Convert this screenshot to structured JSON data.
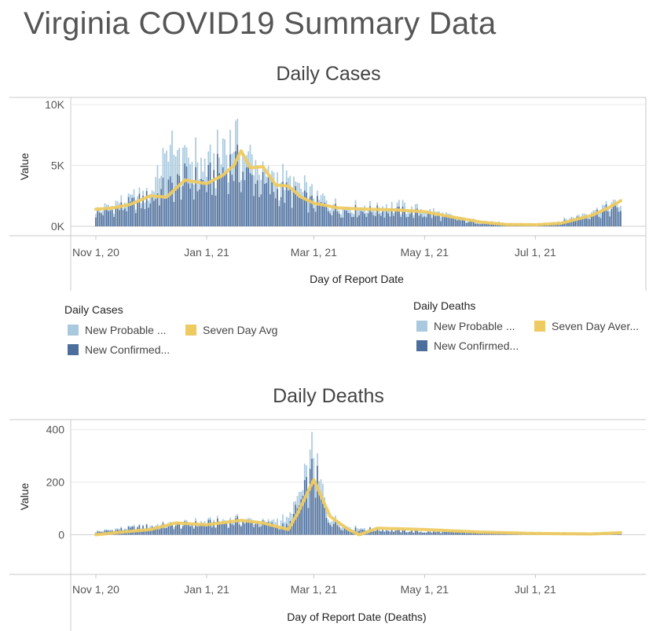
{
  "page": {
    "title": "Virginia COVID19 Summary Data"
  },
  "colors": {
    "probable": "#a9c9de",
    "confirmed": "#4c6e9c",
    "avg": "#eecb61",
    "grid": "#e8e8e8",
    "axis": "#c8c8c8"
  },
  "legend_cases": {
    "title": "Daily Cases",
    "items": [
      {
        "label": "New Probable ...",
        "color": "#a9c9de"
      },
      {
        "label": "Seven Day Avg",
        "color": "#eecb61"
      },
      {
        "label": "New Confirmed...",
        "color": "#4c6e9c"
      }
    ]
  },
  "legend_deaths": {
    "title": "Daily Deaths",
    "items": [
      {
        "label": "New Probable ...",
        "color": "#a9c9de"
      },
      {
        "label": "Seven Day Aver...",
        "color": "#eecb61"
      },
      {
        "label": "New Confirmed...",
        "color": "#4c6e9c"
      }
    ]
  },
  "chart_data": [
    {
      "type": "bar",
      "title": "Daily Cases",
      "xlabel": "Day of Report Date",
      "ylabel": "Value",
      "ylim": [
        0,
        10000
      ],
      "x_start": "2020-11-01",
      "x_end": "2021-08-17",
      "y_ticks": [
        {
          "v": 10000,
          "label": "10K"
        },
        {
          "v": 5000,
          "label": "5K"
        },
        {
          "v": 0,
          "label": "0K"
        }
      ],
      "x_ticks": [
        {
          "date": "2020-11-01",
          "label": "Nov 1, 20"
        },
        {
          "date": "2021-01-01",
          "label": "Jan 1, 21"
        },
        {
          "date": "2021-03-01",
          "label": "Mar 1, 21"
        },
        {
          "date": "2021-05-01",
          "label": "May 1, 21"
        },
        {
          "date": "2021-07-01",
          "label": "Jul 1, 21"
        }
      ],
      "series": [
        {
          "name": "New Probable ...",
          "points": [
            [
              "2020-11-01",
              300
            ],
            [
              "2020-11-15",
              400
            ],
            [
              "2020-12-01",
              500
            ],
            [
              "2020-12-10",
              3000
            ],
            [
              "2020-12-20",
              2000
            ],
            [
              "2021-01-01",
              1200
            ],
            [
              "2021-01-15",
              2000
            ],
            [
              "2021-02-01",
              1200
            ],
            [
              "2021-02-15",
              900
            ],
            [
              "2021-03-01",
              700
            ],
            [
              "2021-03-15",
              500
            ],
            [
              "2021-04-01",
              400
            ],
            [
              "2021-04-15",
              400
            ],
            [
              "2021-05-01",
              300
            ],
            [
              "2021-05-15",
              200
            ],
            [
              "2021-06-01",
              100
            ],
            [
              "2021-06-15",
              80
            ],
            [
              "2021-07-01",
              60
            ],
            [
              "2021-07-15",
              120
            ],
            [
              "2021-08-01",
              300
            ],
            [
              "2021-08-17",
              400
            ]
          ]
        },
        {
          "name": "New Confirmed...",
          "points": [
            [
              "2020-11-01",
              1000
            ],
            [
              "2020-11-15",
              1500
            ],
            [
              "2020-12-01",
              2200
            ],
            [
              "2020-12-10",
              3000
            ],
            [
              "2020-12-20",
              3600
            ],
            [
              "2021-01-01",
              3500
            ],
            [
              "2021-01-15",
              5000
            ],
            [
              "2021-02-01",
              3200
            ],
            [
              "2021-02-15",
              2600
            ],
            [
              "2021-03-01",
              1800
            ],
            [
              "2021-03-15",
              1300
            ],
            [
              "2021-04-01",
              1200
            ],
            [
              "2021-04-15",
              1200
            ],
            [
              "2021-05-01",
              1000
            ],
            [
              "2021-05-15",
              600
            ],
            [
              "2021-06-01",
              300
            ],
            [
              "2021-06-15",
              150
            ],
            [
              "2021-07-01",
              100
            ],
            [
              "2021-07-15",
              300
            ],
            [
              "2021-08-01",
              1000
            ],
            [
              "2021-08-17",
              1500
            ]
          ]
        },
        {
          "name": "Seven Day Avg",
          "points": [
            [
              "2020-11-01",
              1400
            ],
            [
              "2020-11-10",
              1500
            ],
            [
              "2020-11-20",
              1800
            ],
            [
              "2020-12-01",
              2500
            ],
            [
              "2020-12-10",
              2400
            ],
            [
              "2020-12-20",
              3800
            ],
            [
              "2021-01-01",
              3500
            ],
            [
              "2021-01-10",
              4200
            ],
            [
              "2021-01-16",
              5000
            ],
            [
              "2021-01-20",
              6200
            ],
            [
              "2021-01-25",
              4800
            ],
            [
              "2021-02-01",
              4900
            ],
            [
              "2021-02-08",
              3400
            ],
            [
              "2021-02-15",
              3300
            ],
            [
              "2021-02-22",
              2400
            ],
            [
              "2021-03-01",
              1900
            ],
            [
              "2021-03-15",
              1500
            ],
            [
              "2021-04-01",
              1400
            ],
            [
              "2021-04-15",
              1350
            ],
            [
              "2021-05-01",
              1200
            ],
            [
              "2021-05-15",
              800
            ],
            [
              "2021-06-01",
              350
            ],
            [
              "2021-06-15",
              150
            ],
            [
              "2021-07-01",
              130
            ],
            [
              "2021-07-15",
              250
            ],
            [
              "2021-08-01",
              900
            ],
            [
              "2021-08-10",
              1500
            ],
            [
              "2021-08-17",
              2100
            ]
          ]
        }
      ]
    },
    {
      "type": "bar",
      "title": "Daily Deaths",
      "xlabel": "Day of Report Date (Deaths)",
      "ylabel": "Value",
      "ylim": [
        -100,
        420
      ],
      "x_start": "2020-11-01",
      "x_end": "2021-08-17",
      "y_ticks": [
        {
          "v": 400,
          "label": "400"
        },
        {
          "v": 200,
          "label": "200"
        },
        {
          "v": 0,
          "label": "0"
        }
      ],
      "x_ticks": [
        {
          "date": "2020-11-01",
          "label": "Nov 1, 20"
        },
        {
          "date": "2021-01-01",
          "label": "Jan 1, 21"
        },
        {
          "date": "2021-03-01",
          "label": "Mar 1, 21"
        },
        {
          "date": "2021-05-01",
          "label": "May 1, 21"
        },
        {
          "date": "2021-07-01",
          "label": "Jul 1, 21"
        }
      ],
      "series": [
        {
          "name": "New Probable ...",
          "points": [
            [
              "2020-11-01",
              3
            ],
            [
              "2020-12-01",
              5
            ],
            [
              "2021-01-01",
              8
            ],
            [
              "2021-02-01",
              8
            ],
            [
              "2021-02-25",
              40
            ],
            [
              "2021-03-01",
              90
            ],
            [
              "2021-03-10",
              20
            ],
            [
              "2021-04-01",
              3
            ],
            [
              "2021-05-01",
              2
            ],
            [
              "2021-06-01",
              1
            ],
            [
              "2021-07-01",
              1
            ],
            [
              "2021-08-17",
              1
            ]
          ]
        },
        {
          "name": "New Confirmed...",
          "points": [
            [
              "2020-11-01",
              10
            ],
            [
              "2020-12-01",
              30
            ],
            [
              "2021-01-01",
              40
            ],
            [
              "2021-01-20",
              50
            ],
            [
              "2021-02-01",
              40
            ],
            [
              "2021-02-15",
              30
            ],
            [
              "2021-02-25",
              160
            ],
            [
              "2021-03-01",
              230
            ],
            [
              "2021-03-08",
              60
            ],
            [
              "2021-03-20",
              20
            ],
            [
              "2021-04-01",
              20
            ],
            [
              "2021-05-01",
              10
            ],
            [
              "2021-06-01",
              10
            ],
            [
              "2021-07-01",
              6
            ],
            [
              "2021-08-17",
              6
            ]
          ]
        },
        {
          "name": "Seven Day Aver...",
          "points": [
            [
              "2020-11-01",
              0
            ],
            [
              "2020-11-15",
              10
            ],
            [
              "2020-12-01",
              20
            ],
            [
              "2020-12-15",
              45
            ],
            [
              "2021-01-01",
              38
            ],
            [
              "2021-01-20",
              55
            ],
            [
              "2021-02-01",
              45
            ],
            [
              "2021-02-15",
              20
            ],
            [
              "2021-02-20",
              80
            ],
            [
              "2021-03-01",
              210
            ],
            [
              "2021-03-10",
              70
            ],
            [
              "2021-03-20",
              20
            ],
            [
              "2021-03-26",
              0
            ],
            [
              "2021-04-05",
              25
            ],
            [
              "2021-05-01",
              20
            ],
            [
              "2021-06-01",
              10
            ],
            [
              "2021-07-01",
              5
            ],
            [
              "2021-08-01",
              3
            ],
            [
              "2021-08-17",
              8
            ]
          ]
        }
      ]
    }
  ]
}
